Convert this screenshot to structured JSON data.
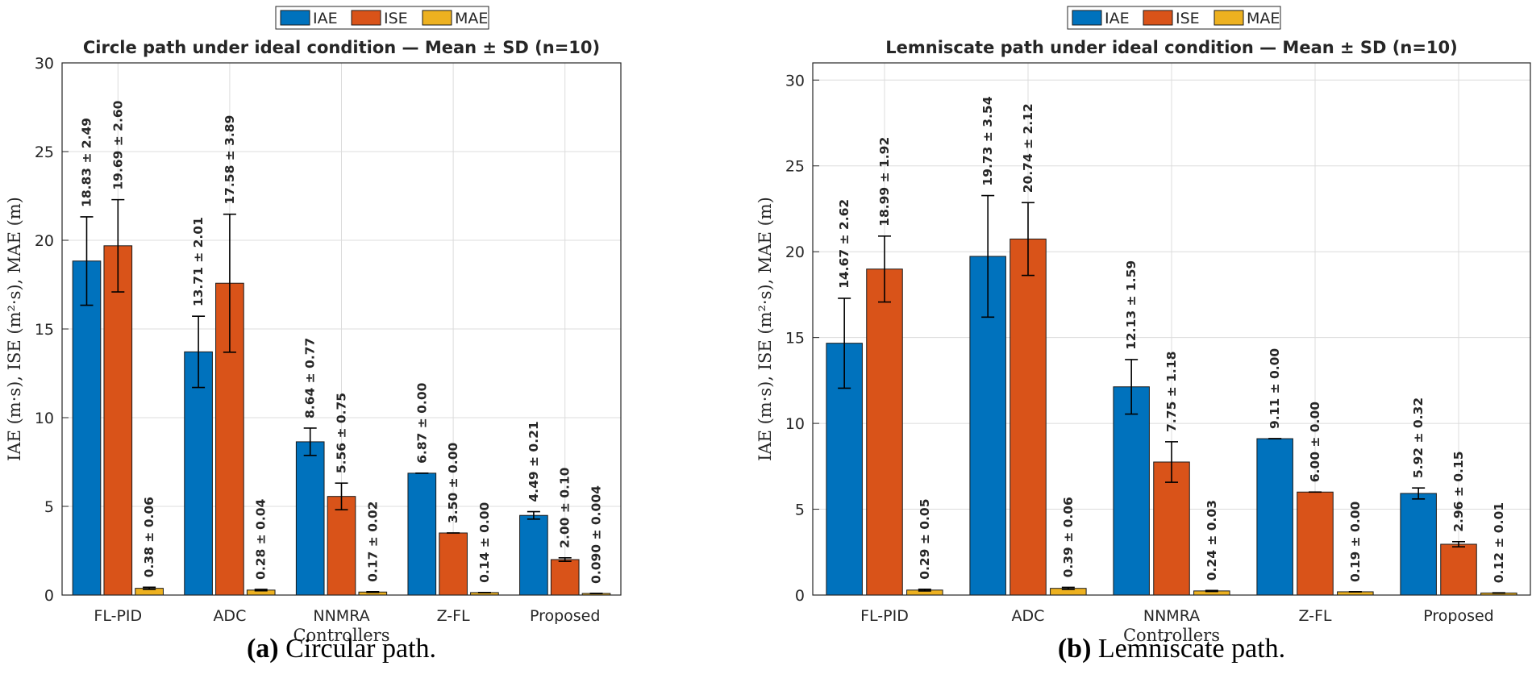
{
  "legend": [
    {
      "name": "IAE",
      "color": "#0072BD"
    },
    {
      "name": "ISE",
      "color": "#D95319"
    },
    {
      "name": "MAE",
      "color": "#EDB120"
    }
  ],
  "chart_data": [
    {
      "type": "bar",
      "title": "Circle path under ideal condition — Mean ± SD (n=10)",
      "xlabel": "Controllers",
      "ylabel": "IAE (m·s), ISE (m²·s), MAE (m)",
      "ylim": [
        0,
        30
      ],
      "yticks": [
        0,
        5,
        10,
        15,
        20,
        25,
        30
      ],
      "grid": true,
      "legend_position": "top-center",
      "categories": [
        "FL-PID",
        "ADC",
        "NNMRA",
        "Z-FL",
        "Proposed"
      ],
      "series": [
        {
          "name": "IAE",
          "values": [
            18.83,
            13.71,
            8.64,
            6.87,
            4.49
          ],
          "sd": [
            2.49,
            2.01,
            0.77,
            0.0,
            0.21
          ],
          "labels": [
            "18.83 ± 2.49",
            "13.71 ± 2.01",
            "8.64 ± 0.77",
            "6.87 ± 0.00",
            "4.49 ± 0.21"
          ]
        },
        {
          "name": "ISE",
          "values": [
            19.69,
            17.58,
            5.56,
            3.5,
            2.0
          ],
          "sd": [
            2.6,
            3.89,
            0.75,
            0.0,
            0.1
          ],
          "labels": [
            "19.69 ± 2.60",
            "17.58 ± 3.89",
            "5.56 ± 0.75",
            "3.50 ± 0.00",
            "2.00 ± 0.10"
          ]
        },
        {
          "name": "MAE",
          "values": [
            0.38,
            0.28,
            0.17,
            0.14,
            0.09
          ],
          "sd": [
            0.06,
            0.04,
            0.02,
            0.0,
            0.004
          ],
          "labels": [
            "0.38 ± 0.06",
            "0.28 ± 0.04",
            "0.17 ± 0.02",
            "0.14 ± 0.00",
            "0.090 ± 0.004"
          ]
        }
      ],
      "caption_label": "(a)",
      "caption_text": " Circular path."
    },
    {
      "type": "bar",
      "title": "Lemniscate path under ideal condition — Mean ± SD (n=10)",
      "xlabel": "Controllers",
      "ylabel": "IAE (m·s), ISE (m²·s), MAE (m)",
      "ylim": [
        0,
        31
      ],
      "yticks": [
        0,
        5,
        10,
        15,
        20,
        25,
        30
      ],
      "grid": true,
      "legend_position": "top-center",
      "categories": [
        "FL-PID",
        "ADC",
        "NNMRA",
        "Z-FL",
        "Proposed"
      ],
      "series": [
        {
          "name": "IAE",
          "values": [
            14.67,
            19.73,
            12.13,
            9.11,
            5.92
          ],
          "sd": [
            2.62,
            3.54,
            1.59,
            0.0,
            0.32
          ],
          "labels": [
            "14.67 ± 2.62",
            "19.73 ± 3.54",
            "12.13 ± 1.59",
            "9.11 ± 0.00",
            "5.92 ± 0.32"
          ]
        },
        {
          "name": "ISE",
          "values": [
            18.99,
            20.74,
            7.75,
            6.0,
            2.96
          ],
          "sd": [
            1.92,
            2.12,
            1.18,
            0.0,
            0.15
          ],
          "labels": [
            "18.99 ± 1.92",
            "20.74 ± 2.12",
            "7.75 ± 1.18",
            "6.00 ± 0.00",
            "2.96 ± 0.15"
          ]
        },
        {
          "name": "MAE",
          "values": [
            0.29,
            0.39,
            0.24,
            0.19,
            0.12
          ],
          "sd": [
            0.05,
            0.06,
            0.03,
            0.0,
            0.01
          ],
          "labels": [
            "0.29 ± 0.05",
            "0.39 ± 0.06",
            "0.24 ± 0.03",
            "0.19 ± 0.00",
            "0.12 ± 0.01"
          ]
        }
      ],
      "caption_label": "(b)",
      "caption_text": " Lemniscate path."
    }
  ]
}
